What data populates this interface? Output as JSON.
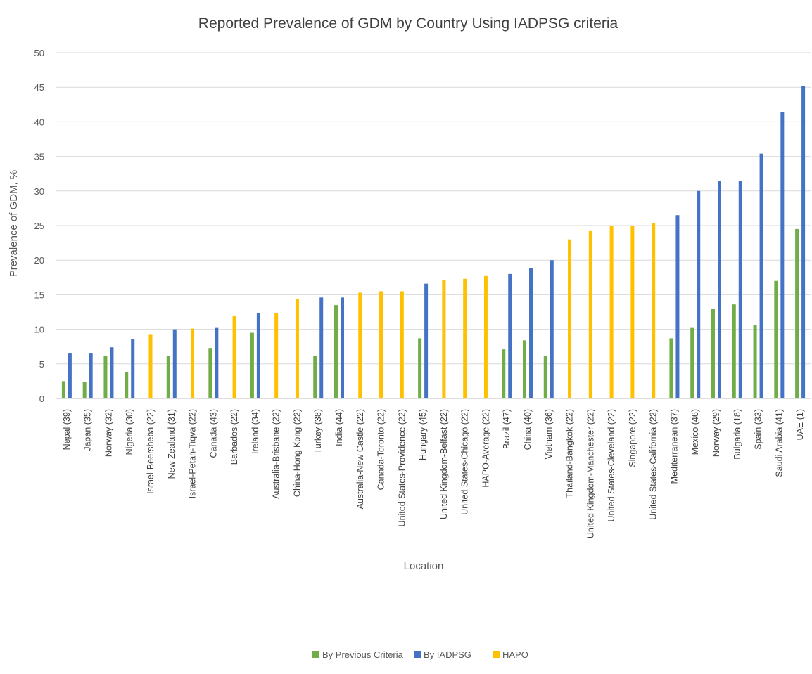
{
  "chart_data": {
    "type": "bar",
    "title": "Reported Prevalence of GDM by Country Using IADPSG criteria",
    "xlabel": "Location",
    "ylabel": "Prevalence of GDM, %",
    "ylim": [
      0,
      50
    ],
    "yticks": [
      0,
      5,
      10,
      15,
      20,
      25,
      30,
      35,
      40,
      45,
      50
    ],
    "grid": true,
    "legend_position": "bottom",
    "categories": [
      "Nepal (39)",
      "Japan (35)",
      "Norway (32)",
      "Nigeria (30)",
      "Israel-Beersheba (22)",
      "New Zealand (31)",
      "Israel-Petah-Tiqva (22)",
      "Canada (43)",
      "Barbados (22)",
      "Ireland (34)",
      "Australia-Brisbane (22)",
      "China-Hong Kong (22)",
      "Turkey (38)",
      "India (44)",
      "Australia-New Castle (22)",
      "Canada-Toronto (22)",
      "United States-Providence (22)",
      "Hungary (45)",
      "United Kingdom-Belfast (22)",
      "United States-Chicago (22)",
      "HAPO-Average (22)",
      "Brazil (47)",
      "China (40)",
      "Vietnam (36)",
      "Thailand-Bangkok (22)",
      "United Kingdom-Manchester (22)",
      "United States-Cleveland (22)",
      "Singapore (22)",
      "United States-California (22)",
      "Mediterranean (37)",
      "Mexico (46)",
      "Norway (29)",
      "Bulgaria (18)",
      "Spain (33)",
      "Saudi Arabia (41)",
      "UAE (1)"
    ],
    "series": [
      {
        "name": "By Previous Criteria",
        "color": "#70ad47",
        "values": [
          2.5,
          2.4,
          6.1,
          3.8,
          null,
          6.1,
          null,
          7.3,
          null,
          9.5,
          null,
          null,
          6.1,
          13.5,
          null,
          null,
          null,
          8.7,
          null,
          null,
          null,
          7.1,
          8.4,
          6.1,
          null,
          null,
          null,
          null,
          null,
          8.7,
          10.3,
          13.0,
          13.6,
          10.6,
          17.0,
          24.5
        ]
      },
      {
        "name": "By IADPSG",
        "color": "#4472c4",
        "values": [
          6.6,
          6.6,
          7.4,
          8.6,
          null,
          10.0,
          null,
          10.3,
          null,
          12.4,
          null,
          null,
          14.6,
          14.6,
          null,
          null,
          null,
          16.6,
          null,
          null,
          null,
          18.0,
          18.9,
          20.0,
          null,
          null,
          null,
          null,
          null,
          26.5,
          30.0,
          31.4,
          31.5,
          35.4,
          41.4,
          45.2
        ]
      },
      {
        "name": "HAPO",
        "color": "#ffc000",
        "values": [
          null,
          null,
          null,
          null,
          9.3,
          null,
          10.1,
          null,
          12.0,
          null,
          12.4,
          14.4,
          null,
          null,
          15.3,
          15.5,
          15.5,
          null,
          17.1,
          17.3,
          17.8,
          null,
          null,
          null,
          23.0,
          24.3,
          25.0,
          25.0,
          25.4,
          null,
          null,
          null,
          null,
          null,
          null,
          null
        ]
      }
    ]
  }
}
